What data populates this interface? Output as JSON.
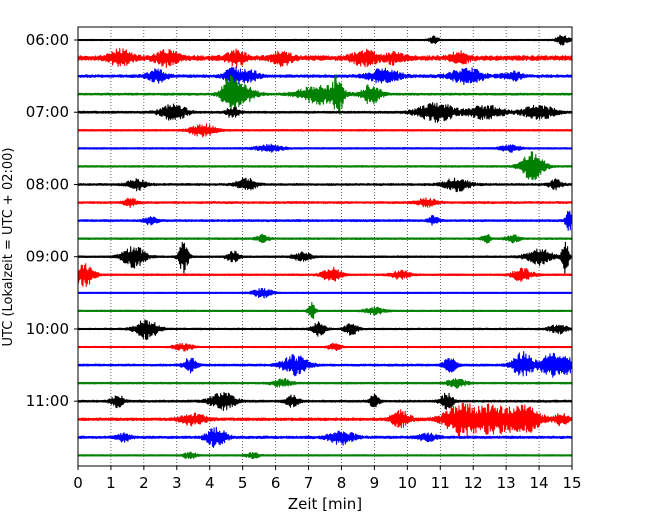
{
  "chart_data": {
    "type": "line",
    "chart_kind": "helicorder (seismogram drum plot)",
    "title": "",
    "xlabel": "Zeit  [min]",
    "ylabel": "UTC (Lokalzeit = UTC + 02:00)",
    "xlim": [
      0,
      15
    ],
    "x_ticks": [
      0,
      1,
      2,
      3,
      4,
      5,
      6,
      7,
      8,
      9,
      10,
      11,
      12,
      13,
      14,
      15
    ],
    "x_tick_labels": [
      "0",
      "1",
      "2",
      "3",
      "4",
      "5",
      "6",
      "7",
      "8",
      "9",
      "10",
      "11",
      "12",
      "13",
      "14",
      "15"
    ],
    "vertical_grid": "dotted, every 1 min",
    "y_tick_labels": [
      "06:00",
      "07:00",
      "08:00",
      "09:00",
      "10:00",
      "11:00"
    ],
    "y_tick_trace_indices": [
      0,
      4,
      8,
      12,
      16,
      20
    ],
    "trace_colors": [
      "#000000",
      "#ff0000",
      "#0000ff",
      "#008000"
    ],
    "traces": [
      {
        "row": 0,
        "start": "06:00",
        "baseline_amp": 0.1,
        "events": [
          [
            10.8,
            0.5,
            0.15
          ],
          [
            14.7,
            0.7,
            0.2
          ]
        ]
      },
      {
        "row": 1,
        "start": "06:15",
        "baseline_amp": 0.35,
        "events": [
          [
            1.3,
            1.1,
            0.35
          ],
          [
            2.7,
            1.0,
            0.35
          ],
          [
            4.8,
            1.0,
            0.3
          ],
          [
            6.2,
            0.9,
            0.3
          ],
          [
            8.7,
            1.0,
            0.4
          ],
          [
            9.6,
            0.7,
            0.3
          ],
          [
            11.6,
            0.8,
            0.3
          ]
        ]
      },
      {
        "row": 2,
        "start": "06:30",
        "baseline_amp": 0.2,
        "events": [
          [
            2.4,
            0.9,
            0.3
          ],
          [
            4.7,
            1.2,
            0.25
          ],
          [
            5.2,
            0.8,
            0.3
          ],
          [
            9.3,
            1.0,
            0.5
          ],
          [
            11.8,
            1.1,
            0.5
          ],
          [
            13.2,
            0.6,
            0.3
          ]
        ]
      },
      {
        "row": 3,
        "start": "06:45",
        "baseline_amp": 0.15,
        "events": [
          [
            4.6,
            2.0,
            0.25
          ],
          [
            5.0,
            1.3,
            0.4
          ],
          [
            7.3,
            1.4,
            0.6
          ],
          [
            7.9,
            2.8,
            0.15
          ],
          [
            8.9,
            1.4,
            0.3
          ]
        ]
      },
      {
        "row": 4,
        "start": "07:00",
        "baseline_amp": 0.15,
        "events": [
          [
            2.9,
            1.2,
            0.4
          ],
          [
            4.7,
            0.8,
            0.2
          ],
          [
            10.9,
            1.3,
            0.6
          ],
          [
            12.4,
            1.0,
            0.5
          ],
          [
            14.0,
            1.0,
            0.5
          ]
        ]
      },
      {
        "row": 5,
        "start": "07:15",
        "baseline_amp": 0.12,
        "events": [
          [
            3.8,
            0.9,
            0.4
          ]
        ]
      },
      {
        "row": 6,
        "start": "07:30",
        "baseline_amp": 0.12,
        "events": [
          [
            5.8,
            0.5,
            0.4
          ],
          [
            13.1,
            0.5,
            0.3
          ]
        ]
      },
      {
        "row": 7,
        "start": "07:45",
        "baseline_amp": 0.12,
        "events": [
          [
            13.8,
            2.0,
            0.35
          ]
        ]
      },
      {
        "row": 8,
        "start": "08:00",
        "baseline_amp": 0.15,
        "events": [
          [
            1.8,
            0.8,
            0.3
          ],
          [
            5.1,
            0.9,
            0.3
          ],
          [
            11.5,
            0.9,
            0.4
          ],
          [
            14.5,
            0.7,
            0.2
          ]
        ]
      },
      {
        "row": 9,
        "start": "08:15",
        "baseline_amp": 0.15,
        "events": [
          [
            1.6,
            0.6,
            0.2
          ],
          [
            10.6,
            0.6,
            0.3
          ]
        ]
      },
      {
        "row": 10,
        "start": "08:30",
        "baseline_amp": 0.15,
        "events": [
          [
            2.2,
            0.6,
            0.2
          ],
          [
            10.8,
            0.7,
            0.15
          ],
          [
            14.9,
            1.5,
            0.1
          ]
        ]
      },
      {
        "row": 11,
        "start": "08:45",
        "baseline_amp": 0.12,
        "events": [
          [
            5.6,
            0.5,
            0.2
          ],
          [
            12.4,
            0.6,
            0.15
          ],
          [
            13.2,
            0.6,
            0.2
          ]
        ]
      },
      {
        "row": 12,
        "start": "09:00",
        "baseline_amp": 0.12,
        "events": [
          [
            1.7,
            1.6,
            0.35
          ],
          [
            3.2,
            2.3,
            0.15
          ],
          [
            4.7,
            0.8,
            0.2
          ],
          [
            6.8,
            0.6,
            0.3
          ],
          [
            14.0,
            1.2,
            0.4
          ],
          [
            14.8,
            3.0,
            0.1
          ]
        ]
      },
      {
        "row": 13,
        "start": "09:15",
        "baseline_amp": 0.12,
        "events": [
          [
            0.2,
            1.6,
            0.3
          ],
          [
            7.7,
            1.0,
            0.3
          ],
          [
            9.8,
            0.6,
            0.3
          ],
          [
            13.5,
            1.0,
            0.3
          ]
        ]
      },
      {
        "row": 14,
        "start": "09:30",
        "baseline_amp": 0.08,
        "events": [
          [
            5.6,
            0.7,
            0.3
          ]
        ]
      },
      {
        "row": 15,
        "start": "09:45",
        "baseline_amp": 0.1,
        "events": [
          [
            7.1,
            1.6,
            0.1
          ],
          [
            9.0,
            0.5,
            0.3
          ]
        ]
      },
      {
        "row": 16,
        "start": "10:00",
        "baseline_amp": 0.12,
        "events": [
          [
            2.1,
            1.4,
            0.35
          ],
          [
            7.3,
            1.0,
            0.2
          ],
          [
            8.3,
            0.9,
            0.2
          ],
          [
            14.6,
            0.6,
            0.3
          ]
        ]
      },
      {
        "row": 17,
        "start": "10:15",
        "baseline_amp": 0.1,
        "events": [
          [
            3.2,
            0.5,
            0.3
          ],
          [
            7.8,
            0.5,
            0.2
          ]
        ]
      },
      {
        "row": 18,
        "start": "10:30",
        "baseline_amp": 0.15,
        "events": [
          [
            3.4,
            1.0,
            0.2
          ],
          [
            6.6,
            1.4,
            0.4
          ],
          [
            11.3,
            1.1,
            0.2
          ],
          [
            13.5,
            1.8,
            0.3
          ],
          [
            14.4,
            1.6,
            0.4
          ],
          [
            14.9,
            1.0,
            0.2
          ]
        ]
      },
      {
        "row": 19,
        "start": "10:45",
        "baseline_amp": 0.12,
        "events": [
          [
            6.2,
            0.6,
            0.3
          ],
          [
            11.5,
            0.6,
            0.3
          ]
        ]
      },
      {
        "row": 20,
        "start": "11:00",
        "baseline_amp": 0.15,
        "events": [
          [
            1.2,
            0.9,
            0.2
          ],
          [
            4.4,
            1.2,
            0.4
          ],
          [
            6.5,
            0.8,
            0.2
          ],
          [
            9.0,
            0.9,
            0.15
          ],
          [
            11.2,
            1.1,
            0.2
          ]
        ]
      },
      {
        "row": 21,
        "start": "11:15",
        "baseline_amp": 0.2,
        "events": [
          [
            3.5,
            0.8,
            0.4
          ],
          [
            9.8,
            1.2,
            0.3
          ],
          [
            11.6,
            2.0,
            0.5
          ],
          [
            12.6,
            2.0,
            0.7
          ],
          [
            13.6,
            1.7,
            0.5
          ],
          [
            14.7,
            0.9,
            0.2
          ]
        ]
      },
      {
        "row": 22,
        "start": "11:30",
        "baseline_amp": 0.18,
        "events": [
          [
            1.4,
            0.6,
            0.2
          ],
          [
            4.2,
            1.4,
            0.3
          ],
          [
            8.0,
            1.0,
            0.4
          ],
          [
            10.6,
            0.5,
            0.3
          ]
        ]
      },
      {
        "row": 23,
        "start": "11:45",
        "baseline_amp": 0.1,
        "events": [
          [
            3.4,
            0.5,
            0.2
          ],
          [
            5.3,
            0.4,
            0.2
          ]
        ]
      }
    ]
  }
}
